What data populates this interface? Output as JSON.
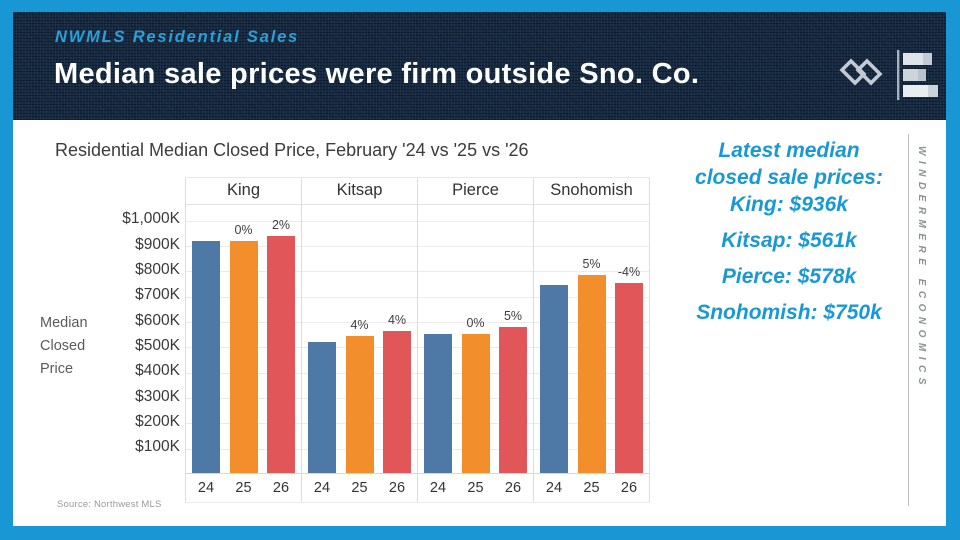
{
  "slide": {
    "frame_color": "#1897d4",
    "header": {
      "eyebrow": "NWMLS Residential Sales",
      "title": "Median sale prices were firm outside Sno. Co.",
      "bg_color": "#16293f"
    },
    "chart": {
      "title": "Residential Median Closed Price, February '24 vs '25 vs '26",
      "y_axis_title_lines": [
        "Median",
        "Closed",
        "Price"
      ],
      "source": "Source: Northwest MLS"
    },
    "callout": {
      "color": "#1899d6",
      "lead_lines": [
        "Latest median",
        "closed sale prices:",
        "King: $936k"
      ],
      "items": [
        "Kitsap: $561k",
        "Pierce: $578k",
        "Snohomish: $750k"
      ]
    },
    "brand_vertical_text": "WINDERMERE ECONOMICS"
  },
  "chart_data": {
    "type": "bar",
    "title": "Residential Median Closed Price, February '24 vs '25 vs '26",
    "ylabel": "Median Closed Price",
    "xlabel": "",
    "units": "$K (thousands of dollars)",
    "ylim": [
      0,
      1050
    ],
    "grid": true,
    "legend": false,
    "categories": [
      "24",
      "25",
      "26"
    ],
    "series": [
      {
        "name": "24",
        "color": "#4e79a7"
      },
      {
        "name": "25",
        "color": "#f28e2b"
      },
      {
        "name": "26",
        "color": "#e15759"
      }
    ],
    "y_tick_values": [
      100,
      200,
      300,
      400,
      500,
      600,
      700,
      800,
      900,
      1000
    ],
    "y_tick_labels": [
      "$100K",
      "$200K",
      "$300K",
      "$400K",
      "$500K",
      "$600K",
      "$700K",
      "$800K",
      "$900K",
      "$1,000K"
    ],
    "groups": [
      {
        "name": "King",
        "values": [
          915,
          915,
          936
        ],
        "pct_change_labels": [
          null,
          "0%",
          "2%"
        ]
      },
      {
        "name": "Kitsap",
        "values": [
          518,
          539,
          561
        ],
        "pct_change_labels": [
          null,
          "4%",
          "4%"
        ]
      },
      {
        "name": "Pierce",
        "values": [
          550,
          550,
          578
        ],
        "pct_change_labels": [
          null,
          "0%",
          "5%"
        ]
      },
      {
        "name": "Snohomish",
        "values": [
          744,
          781,
          750
        ],
        "pct_change_labels": [
          null,
          "5%",
          "-4%"
        ]
      }
    ]
  }
}
